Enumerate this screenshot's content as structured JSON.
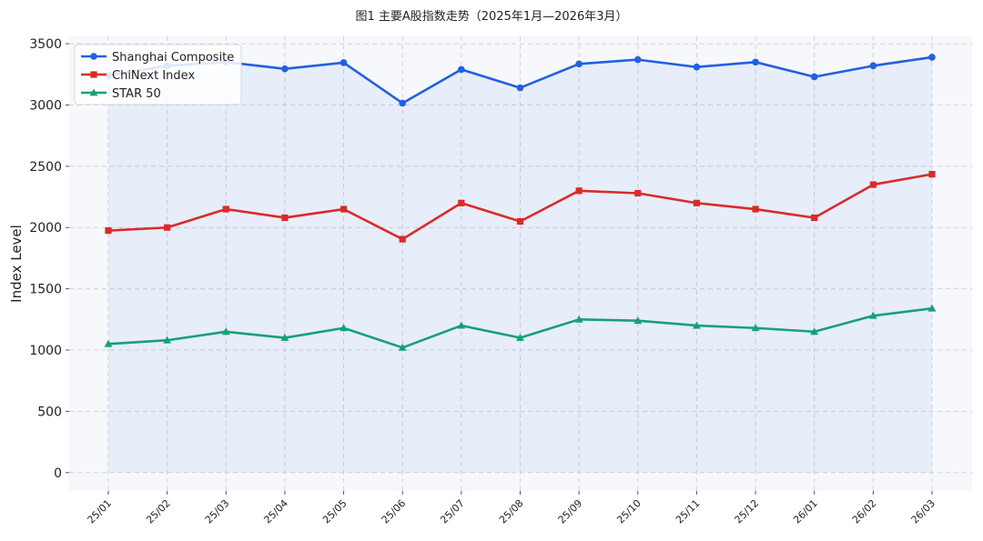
{
  "chart_data": {
    "type": "line",
    "title": "图1  主要A股指数走势（2025年1月—2026年3月）",
    "xlabel": "",
    "ylabel": "Index Level",
    "ylim": [
      -150,
      3560
    ],
    "yticks": [
      0,
      500,
      1000,
      1500,
      2000,
      2500,
      3000,
      3500
    ],
    "grid": true,
    "legend_position": "top-left",
    "categories": [
      "25/01",
      "25/02",
      "25/03",
      "25/04",
      "25/05",
      "25/06",
      "25/07",
      "25/08",
      "25/09",
      "25/10",
      "25/11",
      "25/12",
      "26/01",
      "26/02",
      "26/03"
    ],
    "series": [
      {
        "name": "Shanghai Composite",
        "color": "#2160e0",
        "marker": "circle",
        "fill": true,
        "values": [
          3240,
          3320,
          3350,
          3295,
          3345,
          3015,
          3290,
          3140,
          3335,
          3370,
          3310,
          3350,
          3230,
          3320,
          3390
        ]
      },
      {
        "name": "ChiNext Index",
        "color": "#d92b2b",
        "marker": "square",
        "fill": false,
        "values": [
          1975,
          2000,
          2150,
          2080,
          2150,
          1905,
          2200,
          2050,
          2300,
          2280,
          2200,
          2150,
          2080,
          2350,
          2435
        ]
      },
      {
        "name": "STAR 50",
        "color": "#17a078",
        "marker": "triangle",
        "fill": false,
        "values": [
          1050,
          1080,
          1150,
          1100,
          1180,
          1020,
          1200,
          1100,
          1250,
          1240,
          1200,
          1180,
          1150,
          1280,
          1340
        ]
      }
    ]
  }
}
